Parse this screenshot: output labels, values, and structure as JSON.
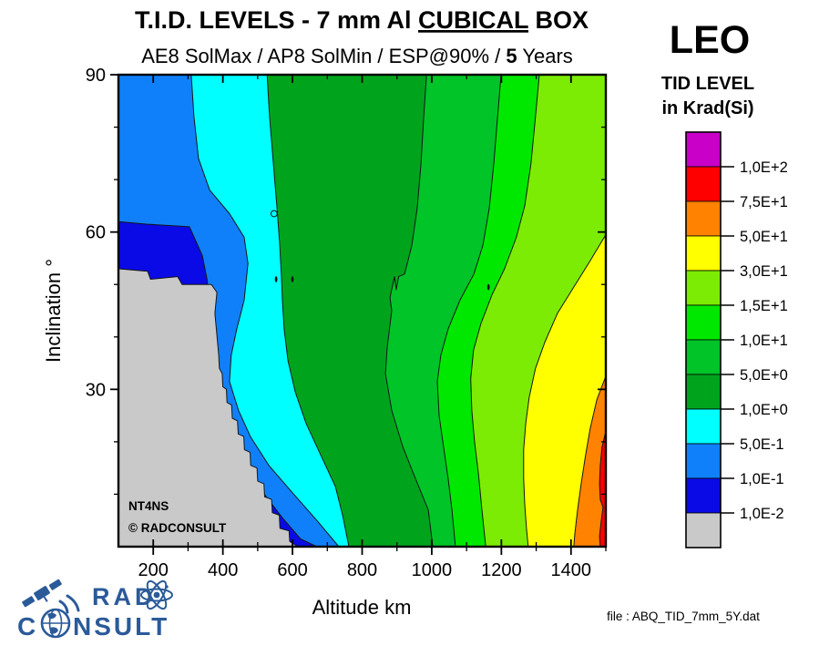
{
  "header": {
    "title_prefix": "T.I.D. LEVELS - 7 mm Al ",
    "title_emph": "CUBICAL",
    "title_suffix": " BOX",
    "subtitle_prefix": "AE8 SolMax / AP8 SolMin / ESP@90% / ",
    "subtitle_bold": "5",
    "subtitle_suffix": " Years"
  },
  "panel": {
    "region": "LEO",
    "legend_title_line1": "TID LEVEL",
    "legend_title_line2": "in Krad(Si)"
  },
  "watermark": {
    "line1": "NT4NS",
    "line2": "©  RADCONSULT"
  },
  "footer": {
    "file_label": "file : ABQ_TID_7mm_5Y.dat"
  },
  "logo": {
    "word1": "RAD",
    "word2_start": "C",
    "word2_end": "NSULT",
    "color": "#2B5A99"
  },
  "chart_data": {
    "type": "filled-contour",
    "title": "T.I.D. LEVELS - 7 mm Al CUBICAL BOX",
    "subtitle": "AE8 SolMax / AP8 SolMin / ESP@90% / 5 Years",
    "xlabel": "Altitude km",
    "ylabel": "Inclination °",
    "unit": "Krad(Si)",
    "x_range": [
      100,
      1500
    ],
    "y_range": [
      0,
      90
    ],
    "x_major_ticks": [
      200,
      400,
      600,
      800,
      1000,
      1200,
      1400
    ],
    "x_minor_ticks": [
      300,
      500,
      700,
      900,
      1100,
      1300,
      1500
    ],
    "y_major_ticks": [
      30,
      60,
      90
    ],
    "y_minor_ticks": [
      10,
      20,
      40,
      50,
      70,
      80
    ],
    "legend_labels": [
      "1,0E+2",
      "7,5E+1",
      "5,0E+1",
      "3,0E+1",
      "1,5E+1",
      "1,0E+1",
      "5,0E+0",
      "1,0E+0",
      "5,0E-1",
      "1,0E-1",
      "1,0E-2"
    ],
    "band_colors": [
      "#C800C8",
      "#FF0000",
      "#FF8200",
      "#FFFF00",
      "#7CEC04",
      "#00E800",
      "#00C428",
      "#00A41C",
      "#00FFFF",
      "#1080FA",
      "#0A0AE6",
      "#C9C9C9"
    ],
    "base_color": "#FF0000",
    "contour_line_color": "#161616",
    "layers": [
      {
        "level": "7,5E+1",
        "color": "#FF8200",
        "points": [
          [
            1500,
            22
          ],
          [
            1489,
            19
          ],
          [
            1484,
            15.5
          ],
          [
            1482,
            12
          ],
          [
            1484,
            9
          ],
          [
            1492,
            7.5
          ],
          [
            1487,
            5
          ],
          [
            1482,
            2
          ],
          [
            1484,
            0
          ],
          [
            100,
            0
          ],
          [
            100,
            90
          ],
          [
            1500,
            90
          ]
        ]
      },
      {
        "level": "5,0E+1",
        "color": "#FFFF00",
        "points": [
          [
            1500,
            32.5
          ],
          [
            1474,
            28
          ],
          [
            1455,
            22.5
          ],
          [
            1442,
            17.5
          ],
          [
            1429,
            12
          ],
          [
            1419,
            7
          ],
          [
            1411,
            2.5
          ],
          [
            1408,
            0
          ],
          [
            100,
            0
          ],
          [
            100,
            90
          ],
          [
            1500,
            90
          ]
        ]
      },
      {
        "level": "3,0E+1",
        "color": "#7CEC04",
        "points": [
          [
            1500,
            59.5
          ],
          [
            1455,
            54.5
          ],
          [
            1408,
            49.5
          ],
          [
            1361,
            44.5
          ],
          [
            1325,
            39
          ],
          [
            1298,
            34
          ],
          [
            1280,
            28.5
          ],
          [
            1270,
            23.5
          ],
          [
            1264,
            18.5
          ],
          [
            1264,
            13
          ],
          [
            1267,
            8
          ],
          [
            1272,
            3.5
          ],
          [
            1277,
            0
          ],
          [
            100,
            0
          ],
          [
            100,
            90
          ],
          [
            1500,
            90
          ]
        ]
      },
      {
        "level": "1,5E+1",
        "color": "#00E800",
        "points": [
          [
            1309,
            90
          ],
          [
            1298,
            82
          ],
          [
            1285,
            73
          ],
          [
            1267,
            65
          ],
          [
            1243,
            59
          ],
          [
            1209,
            53
          ],
          [
            1173,
            48
          ],
          [
            1141,
            42.5
          ],
          [
            1120,
            37.5
          ],
          [
            1112,
            32
          ],
          [
            1115,
            26
          ],
          [
            1123,
            20
          ],
          [
            1134,
            14
          ],
          [
            1144,
            7
          ],
          [
            1155,
            0
          ],
          [
            100,
            0
          ],
          [
            100,
            90
          ]
        ]
      },
      {
        "level": "1,0E+1",
        "color": "#00C428",
        "points": [
          [
            1199,
            90
          ],
          [
            1189,
            82
          ],
          [
            1178,
            73
          ],
          [
            1165,
            64.5
          ],
          [
            1147,
            57.5
          ],
          [
            1121,
            52
          ],
          [
            1081,
            47
          ],
          [
            1047,
            41.5
          ],
          [
            1026,
            36.5
          ],
          [
            1016,
            31.5
          ],
          [
            1021,
            25
          ],
          [
            1034,
            19
          ],
          [
            1047,
            13
          ],
          [
            1058,
            7
          ],
          [
            1068,
            0
          ],
          [
            100,
            0
          ],
          [
            100,
            90
          ]
        ]
      },
      {
        "level": "5,0E+0",
        "color": "#00A41C",
        "points": [
          [
            985,
            90
          ],
          [
            977,
            82
          ],
          [
            969,
            73
          ],
          [
            958,
            64.5
          ],
          [
            943,
            57.5
          ],
          [
            922,
            52
          ],
          [
            905,
            51.5
          ],
          [
            898,
            49
          ],
          [
            893,
            51.5
          ],
          [
            880,
            47.5
          ],
          [
            885,
            45
          ],
          [
            872,
            38
          ],
          [
            867,
            33
          ],
          [
            885,
            26
          ],
          [
            917,
            19
          ],
          [
            953,
            13
          ],
          [
            990,
            7
          ],
          [
            1003,
            0
          ],
          [
            100,
            0
          ],
          [
            100,
            90
          ]
        ]
      },
      {
        "level": "1,0E+0",
        "color": "#00FFFF",
        "points": [
          [
            527,
            90
          ],
          [
            534,
            82
          ],
          [
            545,
            73
          ],
          [
            555,
            65
          ],
          [
            563,
            58
          ],
          [
            568,
            52
          ],
          [
            571,
            47
          ],
          [
            576,
            41.5
          ],
          [
            587,
            35.5
          ],
          [
            608,
            29.5
          ],
          [
            639,
            23.5
          ],
          [
            681,
            17.5
          ],
          [
            723,
            11.5
          ],
          [
            744,
            6
          ],
          [
            762,
            0
          ],
          [
            100,
            0
          ],
          [
            100,
            90
          ]
        ]
      },
      {
        "level": "5,0E-1",
        "color": "#1080FA",
        "points": [
          [
            309,
            90
          ],
          [
            317,
            82
          ],
          [
            330,
            74
          ],
          [
            362,
            68
          ],
          [
            419,
            63.5
          ],
          [
            461,
            59
          ],
          [
            472,
            54
          ],
          [
            461,
            47
          ],
          [
            440,
            41.5
          ],
          [
            424,
            36.5
          ],
          [
            419,
            31.5
          ],
          [
            445,
            26
          ],
          [
            479,
            21
          ],
          [
            532,
            15.5
          ],
          [
            597,
            10.5
          ],
          [
            670,
            5
          ],
          [
            733,
            0
          ],
          [
            100,
            0
          ],
          [
            100,
            90
          ]
        ]
      },
      {
        "level": "1,0E-1",
        "color": "#0A0AE6",
        "points": [
          [
            100,
            62
          ],
          [
            180,
            61.5
          ],
          [
            304,
            61
          ],
          [
            341,
            55.5
          ],
          [
            356,
            50.5
          ],
          [
            349,
            44.5
          ],
          [
            341,
            36.5
          ],
          [
            346,
            29.5
          ],
          [
            375,
            24.5
          ],
          [
            419,
            19
          ],
          [
            466,
            15
          ],
          [
            519,
            10
          ],
          [
            571,
            5.5
          ],
          [
            623,
            1.5
          ],
          [
            670,
            0
          ],
          [
            100,
            0
          ]
        ]
      },
      {
        "level": "1,0E-2",
        "color": "#C9C9C9",
        "points": [
          [
            100,
            53
          ],
          [
            184,
            52.5
          ],
          [
            192,
            51
          ],
          [
            270,
            51.5
          ],
          [
            283,
            50
          ],
          [
            367,
            50
          ],
          [
            383,
            48.5
          ],
          [
            377,
            44.5
          ],
          [
            388,
            36.5
          ],
          [
            390,
            34
          ],
          [
            398,
            33
          ],
          [
            400,
            30.5
          ],
          [
            410,
            30
          ],
          [
            412,
            27.5
          ],
          [
            425,
            27
          ],
          [
            427,
            24.5
          ],
          [
            442,
            24
          ],
          [
            444,
            21.5
          ],
          [
            460,
            21
          ],
          [
            462,
            18.5
          ],
          [
            478,
            18
          ],
          [
            480,
            15.5
          ],
          [
            498,
            15
          ],
          [
            500,
            12.5
          ],
          [
            518,
            12
          ],
          [
            520,
            9.5
          ],
          [
            540,
            9
          ],
          [
            542,
            6.5
          ],
          [
            562,
            6
          ],
          [
            564,
            3.5
          ],
          [
            590,
            3
          ],
          [
            592,
            1
          ],
          [
            616,
            0
          ],
          [
            100,
            0
          ]
        ]
      }
    ],
    "artifacts": [
      {
        "type": "circle",
        "at": [
          547,
          63.5
        ]
      },
      {
        "type": "blip",
        "at": [
          553,
          51
        ]
      },
      {
        "type": "blip",
        "at": [
          600,
          51
        ]
      },
      {
        "type": "blip",
        "at": [
          1163,
          49.5
        ]
      }
    ],
    "legend_position": "right"
  }
}
